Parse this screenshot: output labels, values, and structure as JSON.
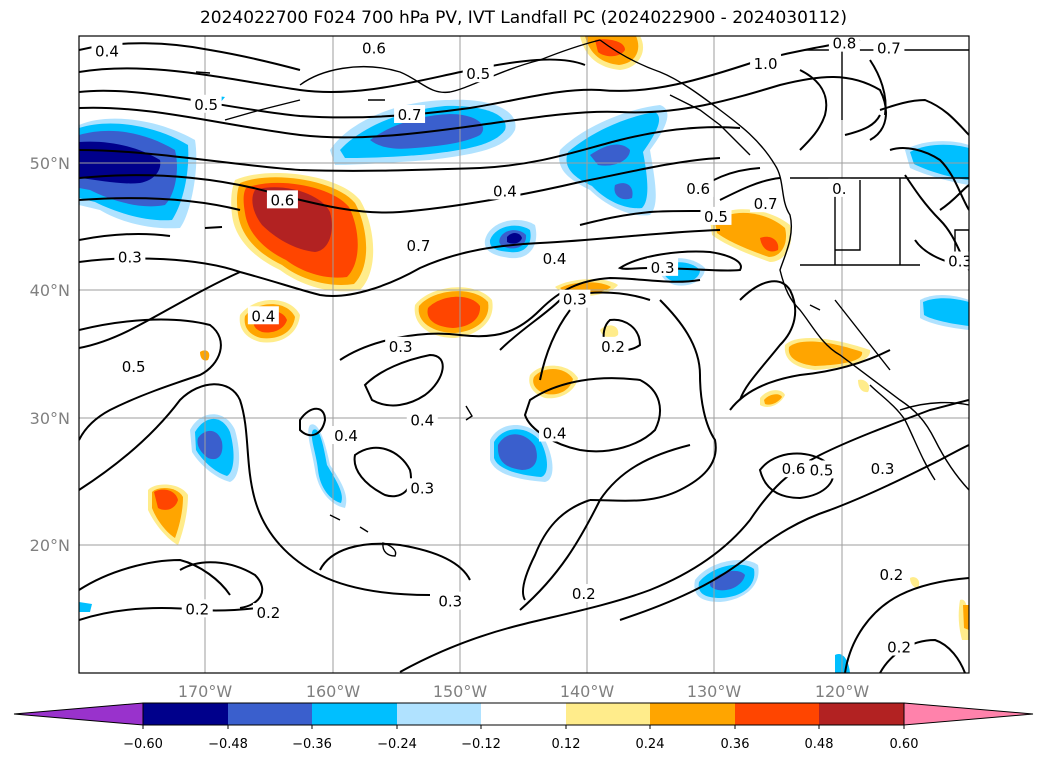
{
  "title": "2024022700 F024 700 hPa PV, IVT Landfall PC (2024022900 - 2024030112)",
  "map": {
    "projection": "PlateCarree",
    "lon_range": [
      -180,
      -110
    ],
    "lat_range": [
      10,
      60
    ],
    "grid": true,
    "lon_ticks": [
      "170°W",
      "160°W",
      "150°W",
      "140°W",
      "130°W",
      "120°W"
    ],
    "lat_ticks": [
      "50°N",
      "40°N",
      "30°N",
      "20°N"
    ]
  },
  "colorbar": {
    "ticks": [
      "−0.60",
      "−0.48",
      "−0.36",
      "−0.24",
      "−0.12",
      "0.12",
      "0.24",
      "0.36",
      "0.48",
      "0.60"
    ],
    "colors": [
      "#9932cc",
      "#00008b",
      "#3a5fcd",
      "#00bfff",
      "#b0e2ff",
      "#ffffff",
      "#ffec8b",
      "#ffa500",
      "#ff4500",
      "#b22222",
      "#ff82ab"
    ],
    "extend": "both"
  },
  "contour_labels": [
    {
      "text": "0.4",
      "lon": -177.8,
      "lat": 58.8
    },
    {
      "text": "0.5",
      "lon": -170.0,
      "lat": 54.6
    },
    {
      "text": "0.6",
      "lon": -156.8,
      "lat": 59.0
    },
    {
      "text": "0.5",
      "lon": -148.6,
      "lat": 57.0
    },
    {
      "text": "0.7",
      "lon": -154.0,
      "lat": 53.8
    },
    {
      "text": "0.4",
      "lon": -146.5,
      "lat": 47.8
    },
    {
      "text": "0.6",
      "lon": -164.0,
      "lat": 47.1
    },
    {
      "text": "0.7",
      "lon": -153.3,
      "lat": 43.5
    },
    {
      "text": "0.3",
      "lon": -176.0,
      "lat": 42.6
    },
    {
      "text": "0.4",
      "lon": -165.5,
      "lat": 38.0
    },
    {
      "text": "0.5",
      "lon": -175.7,
      "lat": 34.0
    },
    {
      "text": "0.3",
      "lon": -154.7,
      "lat": 35.6
    },
    {
      "text": "0.4",
      "lon": -153.0,
      "lat": 29.8
    },
    {
      "text": "0.4",
      "lon": -159.0,
      "lat": 28.6
    },
    {
      "text": "0.3",
      "lon": -153.0,
      "lat": 24.5
    },
    {
      "text": "0.4",
      "lon": -142.6,
      "lat": 42.5
    },
    {
      "text": "0.3",
      "lon": -141.0,
      "lat": 39.3
    },
    {
      "text": "0.2",
      "lon": -138.0,
      "lat": 35.6
    },
    {
      "text": "0.3",
      "lon": -134.1,
      "lat": 41.8
    },
    {
      "text": "0.4",
      "lon": -142.6,
      "lat": 28.8
    },
    {
      "text": "0.6",
      "lon": -131.3,
      "lat": 48.0
    },
    {
      "text": "0.5",
      "lon": -129.9,
      "lat": 45.8
    },
    {
      "text": "0.7",
      "lon": -126.0,
      "lat": 46.8
    },
    {
      "text": "1.0",
      "lon": -126.0,
      "lat": 57.8
    },
    {
      "text": "0.8",
      "lon": -119.8,
      "lat": 59.4
    },
    {
      "text": "0.7",
      "lon": -116.3,
      "lat": 59.0
    },
    {
      "text": "0.",
      "lon": -120.2,
      "lat": 48.0
    },
    {
      "text": "0.6",
      "lon": -123.8,
      "lat": 26.0
    },
    {
      "text": "0.5",
      "lon": -121.6,
      "lat": 25.9
    },
    {
      "text": "0.3",
      "lon": -116.8,
      "lat": 26.0
    },
    {
      "text": "0.2",
      "lon": -140.3,
      "lat": 16.2
    },
    {
      "text": "0.2",
      "lon": -165.1,
      "lat": 14.7
    },
    {
      "text": "0.2",
      "lon": -170.7,
      "lat": 15.0
    },
    {
      "text": "0.3",
      "lon": -150.8,
      "lat": 15.6
    },
    {
      "text": "0.2",
      "lon": -116.1,
      "lat": 17.7
    },
    {
      "text": "0.2",
      "lon": -115.5,
      "lat": 12.0
    },
    {
      "text": "0.3",
      "lon": -110.7,
      "lat": 42.3
    }
  ]
}
